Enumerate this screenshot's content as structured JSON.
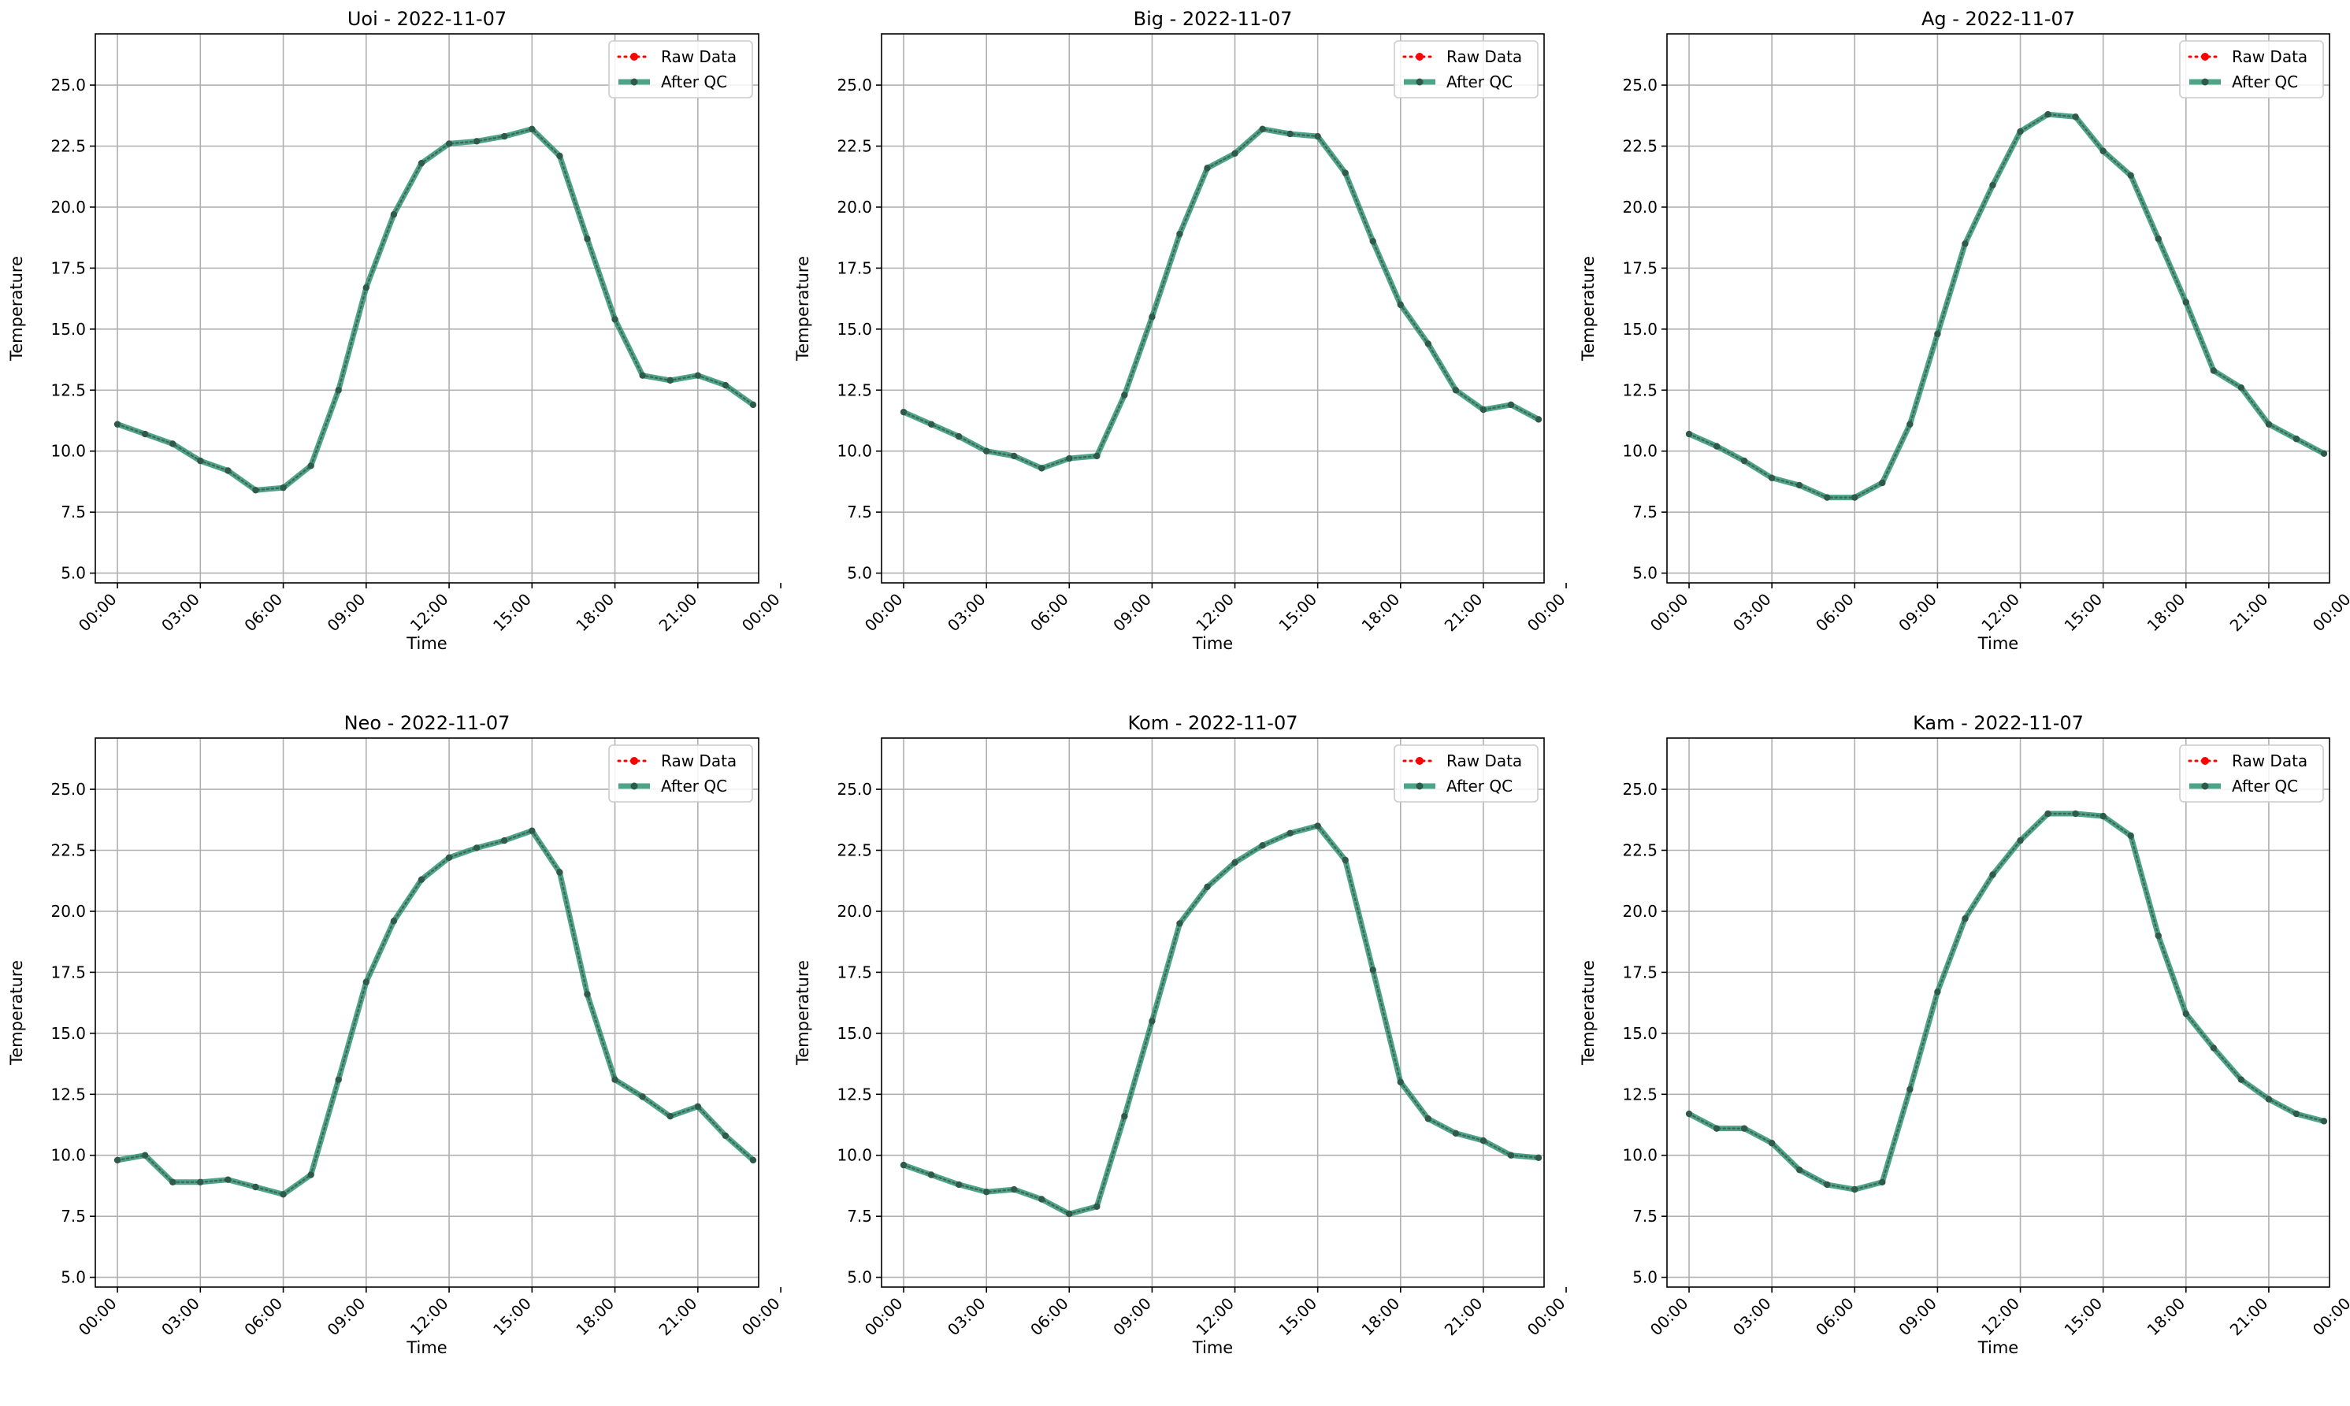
{
  "chart_data": [
    {
      "type": "line",
      "title": "Uoi - 2022-11-07",
      "xlabel": "Time",
      "ylabel": "Temperature",
      "ylim": [
        4.6,
        27.1
      ],
      "xlim": [
        -0.8,
        23.2
      ],
      "x": [
        0,
        1,
        2,
        3,
        4,
        5,
        6,
        7,
        8,
        9,
        10,
        11,
        12,
        13,
        14,
        15,
        16,
        17,
        18,
        19,
        20,
        21,
        22,
        23
      ],
      "xticks": [
        0,
        3,
        6,
        9,
        12,
        15,
        18,
        21,
        24
      ],
      "xtick_labels": [
        "00:00",
        "03:00",
        "06:00",
        "09:00",
        "12:00",
        "15:00",
        "18:00",
        "21:00",
        "00:00"
      ],
      "yticks": [
        5.0,
        7.5,
        10.0,
        12.5,
        15.0,
        17.5,
        20.0,
        22.5,
        25.0
      ],
      "ytick_labels": [
        "5.0",
        "7.5",
        "10.0",
        "12.5",
        "15.0",
        "17.5",
        "20.0",
        "22.5",
        "25.0"
      ],
      "grid": true,
      "legend": "top-right",
      "series": [
        {
          "name": "Raw Data",
          "color": "#ff0000",
          "style": "dotted",
          "values": [
            11.1,
            10.7,
            10.3,
            9.6,
            9.2,
            8.4,
            8.5,
            9.4,
            12.5,
            16.7,
            19.7,
            21.8,
            22.6,
            22.7,
            22.9,
            23.2,
            22.1,
            18.7,
            15.4,
            13.1,
            12.9,
            13.1,
            12.7,
            11.9
          ]
        },
        {
          "name": "After QC",
          "color": "#2e9474",
          "style": "solid",
          "values": [
            11.1,
            10.7,
            10.3,
            9.6,
            9.2,
            8.4,
            8.5,
            9.4,
            12.5,
            16.7,
            19.7,
            21.8,
            22.6,
            22.7,
            22.9,
            23.2,
            22.1,
            18.7,
            15.4,
            13.1,
            12.9,
            13.1,
            12.7,
            11.9
          ]
        }
      ]
    },
    {
      "type": "line",
      "title": "Big - 2022-11-07",
      "xlabel": "Time",
      "ylabel": "Temperature",
      "ylim": [
        4.6,
        27.1
      ],
      "xlim": [
        -0.8,
        23.2
      ],
      "x": [
        0,
        1,
        2,
        3,
        4,
        5,
        6,
        7,
        8,
        9,
        10,
        11,
        12,
        13,
        14,
        15,
        16,
        17,
        18,
        19,
        20,
        21,
        22,
        23
      ],
      "xticks": [
        0,
        3,
        6,
        9,
        12,
        15,
        18,
        21,
        24
      ],
      "xtick_labels": [
        "00:00",
        "03:00",
        "06:00",
        "09:00",
        "12:00",
        "15:00",
        "18:00",
        "21:00",
        "00:00"
      ],
      "yticks": [
        5.0,
        7.5,
        10.0,
        12.5,
        15.0,
        17.5,
        20.0,
        22.5,
        25.0
      ],
      "ytick_labels": [
        "5.0",
        "7.5",
        "10.0",
        "12.5",
        "15.0",
        "17.5",
        "20.0",
        "22.5",
        "25.0"
      ],
      "grid": true,
      "legend": "top-right",
      "series": [
        {
          "name": "Raw Data",
          "color": "#ff0000",
          "style": "dotted",
          "values": [
            11.6,
            11.1,
            10.6,
            10.0,
            9.8,
            9.3,
            9.7,
            9.8,
            12.3,
            15.5,
            18.9,
            21.6,
            22.2,
            23.2,
            23.0,
            22.9,
            21.4,
            18.6,
            16.0,
            14.4,
            12.5,
            11.7,
            11.9,
            11.3
          ]
        },
        {
          "name": "After QC",
          "color": "#2e9474",
          "style": "solid",
          "values": [
            11.6,
            11.1,
            10.6,
            10.0,
            9.8,
            9.3,
            9.7,
            9.8,
            12.3,
            15.5,
            18.9,
            21.6,
            22.2,
            23.2,
            23.0,
            22.9,
            21.4,
            18.6,
            16.0,
            14.4,
            12.5,
            11.7,
            11.9,
            11.3
          ]
        }
      ]
    },
    {
      "type": "line",
      "title": "Ag - 2022-11-07",
      "xlabel": "Time",
      "ylabel": "Temperature",
      "ylim": [
        4.6,
        27.1
      ],
      "xlim": [
        -0.8,
        23.2
      ],
      "x": [
        0,
        1,
        2,
        3,
        4,
        5,
        6,
        7,
        8,
        9,
        10,
        11,
        12,
        13,
        14,
        15,
        16,
        17,
        18,
        19,
        20,
        21,
        22,
        23
      ],
      "xticks": [
        0,
        3,
        6,
        9,
        12,
        15,
        18,
        21,
        24
      ],
      "xtick_labels": [
        "00:00",
        "03:00",
        "06:00",
        "09:00",
        "12:00",
        "15:00",
        "18:00",
        "21:00",
        "00:00"
      ],
      "yticks": [
        5.0,
        7.5,
        10.0,
        12.5,
        15.0,
        17.5,
        20.0,
        22.5,
        25.0
      ],
      "ytick_labels": [
        "5.0",
        "7.5",
        "10.0",
        "12.5",
        "15.0",
        "17.5",
        "20.0",
        "22.5",
        "25.0"
      ],
      "grid": true,
      "legend": "top-right",
      "series": [
        {
          "name": "Raw Data",
          "color": "#ff0000",
          "style": "dotted",
          "values": [
            10.7,
            10.2,
            9.6,
            8.9,
            8.6,
            8.1,
            8.1,
            8.7,
            11.1,
            14.8,
            18.5,
            20.9,
            23.1,
            23.8,
            23.7,
            22.3,
            21.3,
            18.7,
            16.1,
            13.3,
            12.6,
            11.1,
            10.5,
            9.9
          ]
        },
        {
          "name": "After QC",
          "color": "#2e9474",
          "style": "solid",
          "values": [
            10.7,
            10.2,
            9.6,
            8.9,
            8.6,
            8.1,
            8.1,
            8.7,
            11.1,
            14.8,
            18.5,
            20.9,
            23.1,
            23.8,
            23.7,
            22.3,
            21.3,
            18.7,
            16.1,
            13.3,
            12.6,
            11.1,
            10.5,
            9.9
          ]
        }
      ]
    },
    {
      "type": "line",
      "title": "Neo - 2022-11-07",
      "xlabel": "Time",
      "ylabel": "Temperature",
      "ylim": [
        4.6,
        27.1
      ],
      "xlim": [
        -0.8,
        23.2
      ],
      "x": [
        0,
        1,
        2,
        3,
        4,
        5,
        6,
        7,
        8,
        9,
        10,
        11,
        12,
        13,
        14,
        15,
        16,
        17,
        18,
        19,
        20,
        21,
        22,
        23
      ],
      "xticks": [
        0,
        3,
        6,
        9,
        12,
        15,
        18,
        21,
        24
      ],
      "xtick_labels": [
        "00:00",
        "03:00",
        "06:00",
        "09:00",
        "12:00",
        "15:00",
        "18:00",
        "21:00",
        "00:00"
      ],
      "yticks": [
        5.0,
        7.5,
        10.0,
        12.5,
        15.0,
        17.5,
        20.0,
        22.5,
        25.0
      ],
      "ytick_labels": [
        "5.0",
        "7.5",
        "10.0",
        "12.5",
        "15.0",
        "17.5",
        "20.0",
        "22.5",
        "25.0"
      ],
      "grid": true,
      "legend": "top-right",
      "series": [
        {
          "name": "Raw Data",
          "color": "#ff0000",
          "style": "dotted",
          "values": [
            9.8,
            10.0,
            8.9,
            8.9,
            9.0,
            8.7,
            8.4,
            9.2,
            13.1,
            17.1,
            19.6,
            21.3,
            22.2,
            22.6,
            22.9,
            23.3,
            21.6,
            16.6,
            13.1,
            12.4,
            11.6,
            12.0,
            10.8,
            9.8
          ]
        },
        {
          "name": "After QC",
          "color": "#2e9474",
          "style": "solid",
          "values": [
            9.8,
            10.0,
            8.9,
            8.9,
            9.0,
            8.7,
            8.4,
            9.2,
            13.1,
            17.1,
            19.6,
            21.3,
            22.2,
            22.6,
            22.9,
            23.3,
            21.6,
            16.6,
            13.1,
            12.4,
            11.6,
            12.0,
            10.8,
            9.8
          ]
        }
      ]
    },
    {
      "type": "line",
      "title": "Kom - 2022-11-07",
      "xlabel": "Time",
      "ylabel": "Temperature",
      "ylim": [
        4.6,
        27.1
      ],
      "xlim": [
        -0.8,
        23.2
      ],
      "x": [
        0,
        1,
        2,
        3,
        4,
        5,
        6,
        7,
        8,
        9,
        10,
        11,
        12,
        13,
        14,
        15,
        16,
        17,
        18,
        19,
        20,
        21,
        22,
        23
      ],
      "xticks": [
        0,
        3,
        6,
        9,
        12,
        15,
        18,
        21,
        24
      ],
      "xtick_labels": [
        "00:00",
        "03:00",
        "06:00",
        "09:00",
        "12:00",
        "15:00",
        "18:00",
        "21:00",
        "00:00"
      ],
      "yticks": [
        5.0,
        7.5,
        10.0,
        12.5,
        15.0,
        17.5,
        20.0,
        22.5,
        25.0
      ],
      "ytick_labels": [
        "5.0",
        "7.5",
        "10.0",
        "12.5",
        "15.0",
        "17.5",
        "20.0",
        "22.5",
        "25.0"
      ],
      "grid": true,
      "legend": "top-right",
      "series": [
        {
          "name": "Raw Data",
          "color": "#ff0000",
          "style": "dotted",
          "values": [
            9.6,
            9.2,
            8.8,
            8.5,
            8.6,
            8.2,
            7.6,
            7.9,
            11.6,
            15.5,
            19.5,
            21.0,
            22.0,
            22.7,
            23.2,
            23.5,
            22.1,
            17.6,
            13.0,
            11.5,
            10.9,
            10.6,
            10.0,
            9.9
          ]
        },
        {
          "name": "After QC",
          "color": "#2e9474",
          "style": "solid",
          "values": [
            9.6,
            9.2,
            8.8,
            8.5,
            8.6,
            8.2,
            7.6,
            7.9,
            11.6,
            15.5,
            19.5,
            21.0,
            22.0,
            22.7,
            23.2,
            23.5,
            22.1,
            17.6,
            13.0,
            11.5,
            10.9,
            10.6,
            10.0,
            9.9
          ]
        }
      ]
    },
    {
      "type": "line",
      "title": "Kam - 2022-11-07",
      "xlabel": "Time",
      "ylabel": "Temperature",
      "ylim": [
        4.6,
        27.1
      ],
      "xlim": [
        -0.8,
        23.2
      ],
      "x": [
        0,
        1,
        2,
        3,
        4,
        5,
        6,
        7,
        8,
        9,
        10,
        11,
        12,
        13,
        14,
        15,
        16,
        17,
        18,
        19,
        20,
        21,
        22,
        23
      ],
      "xticks": [
        0,
        3,
        6,
        9,
        12,
        15,
        18,
        21,
        24
      ],
      "xtick_labels": [
        "00:00",
        "03:00",
        "06:00",
        "09:00",
        "12:00",
        "15:00",
        "18:00",
        "21:00",
        "00:00"
      ],
      "yticks": [
        5.0,
        7.5,
        10.0,
        12.5,
        15.0,
        17.5,
        20.0,
        22.5,
        25.0
      ],
      "ytick_labels": [
        "5.0",
        "7.5",
        "10.0",
        "12.5",
        "15.0",
        "17.5",
        "20.0",
        "22.5",
        "25.0"
      ],
      "grid": true,
      "legend": "top-right",
      "series": [
        {
          "name": "Raw Data",
          "color": "#ff0000",
          "style": "dotted",
          "values": [
            11.7,
            11.1,
            11.1,
            10.5,
            9.4,
            8.8,
            8.6,
            8.9,
            12.7,
            16.7,
            19.7,
            21.5,
            22.9,
            24.0,
            24.0,
            23.9,
            23.1,
            19.0,
            15.8,
            14.4,
            13.1,
            12.3,
            11.7,
            11.4
          ]
        },
        {
          "name": "After QC",
          "color": "#2e9474",
          "style": "solid",
          "values": [
            11.7,
            11.1,
            11.1,
            10.5,
            9.4,
            8.8,
            8.6,
            8.9,
            12.7,
            16.7,
            19.7,
            21.5,
            22.9,
            24.0,
            24.0,
            23.9,
            23.1,
            19.0,
            15.8,
            14.4,
            13.1,
            12.3,
            11.7,
            11.4
          ]
        }
      ]
    }
  ]
}
